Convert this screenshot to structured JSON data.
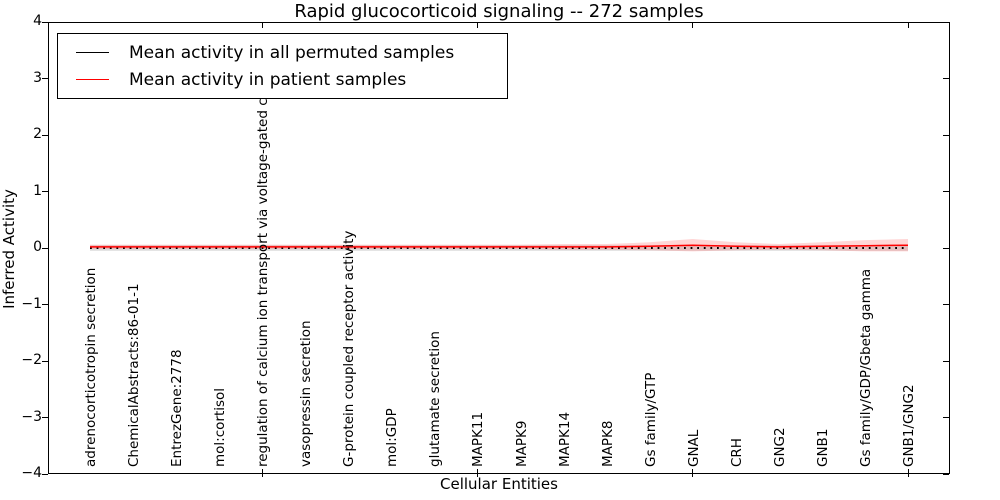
{
  "figure": {
    "title": "Rapid glucocorticoid signaling -- 272 samples",
    "xlabel": "Cellular Entities",
    "ylabel": "Inferred Activity"
  },
  "legend": {
    "items": [
      {
        "label": "Mean activity in all permuted samples",
        "color": "#000000"
      },
      {
        "label": "Mean activity in patient samples",
        "color": "#ff0000"
      }
    ]
  },
  "chart_data": {
    "type": "line",
    "title": "Rapid glucocorticoid signaling -- 272 samples",
    "xlabel": "Cellular Entities",
    "ylabel": "Inferred Activity",
    "ylim": [
      -4,
      4
    ],
    "yticks": [
      4,
      3,
      2,
      1,
      0,
      -1,
      -2,
      -3,
      -4
    ],
    "ytick_labels": [
      "4",
      "3",
      "2",
      "1",
      "0",
      "−1",
      "−2",
      "−3",
      "−4"
    ],
    "grid": false,
    "legend_position": "upper left",
    "categories": [
      "adrenocorticotropin secretion",
      "ChemicalAbstracts:86-01-1",
      "EntrezGene:2778",
      "mol:cortisol",
      "regulation of calcium ion transport via voltage-gated channel",
      "vasopressin secretion",
      "G-protein coupled receptor activity",
      "mol:GDP",
      "glutamate secretion",
      "MAPK11",
      "MAPK9",
      "MAPK14",
      "MAPK8",
      "Gs family/GTP",
      "GNAL",
      "CRH",
      "GNG2",
      "GNB1",
      "Gs family/GDP/Gbeta gamma",
      "GNB1/GNG2"
    ],
    "series": [
      {
        "name": "Mean activity in all permuted samples",
        "color": "#000000",
        "linestyle": "dotted",
        "values": [
          0,
          0,
          0,
          0,
          0,
          0,
          0,
          0,
          0,
          0,
          0,
          0,
          0,
          0,
          0,
          0,
          0,
          0,
          0,
          0
        ],
        "band_halfwidth": [
          0.05,
          0.05,
          0.05,
          0.05,
          0.05,
          0.05,
          0.05,
          0.05,
          0.05,
          0.05,
          0.05,
          0.05,
          0.05,
          0.05,
          0.05,
          0.05,
          0.05,
          0.05,
          0.05,
          0.05
        ],
        "band_color": "#bfbfbf"
      },
      {
        "name": "Mean activity in patient samples",
        "color": "#ff0000",
        "linestyle": "solid",
        "values": [
          0.02,
          0.02,
          0.02,
          0.02,
          0.02,
          0.02,
          0.02,
          0.02,
          0.02,
          0.02,
          0.02,
          0.02,
          0.02,
          0.03,
          0.05,
          0.03,
          0.02,
          0.03,
          0.04,
          0.05
        ],
        "band_halfwidth": [
          0.04,
          0.04,
          0.04,
          0.04,
          0.04,
          0.04,
          0.04,
          0.04,
          0.04,
          0.04,
          0.04,
          0.05,
          0.05,
          0.07,
          0.11,
          0.07,
          0.05,
          0.07,
          0.1,
          0.11
        ],
        "band_color": "#ff5c5c"
      }
    ],
    "extra_x_tick_indices": [
      4,
      9,
      14,
      19
    ]
  }
}
